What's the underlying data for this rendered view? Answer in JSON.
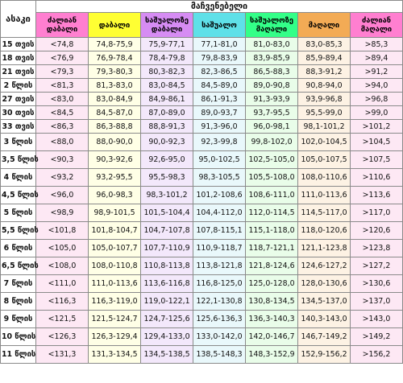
{
  "table": {
    "age_header": "ასაკი",
    "indicators_header": "მაჩვენებელი",
    "columns": [
      "ძალიან დაბალი",
      "დაბალი",
      "საშუალოზე დაბალი",
      "საშუალო",
      "საშუალოზე მაღალი",
      "მაღალი",
      "ძალიან მაღალი"
    ],
    "rows": [
      {
        "age": "15 თვის",
        "values": [
          "<74,8",
          "74,8-75,9",
          "75,9-77,1",
          "77,1-81,0",
          "81,0-83,0",
          "83,0-85,3",
          ">85,3"
        ]
      },
      {
        "age": "18 თვის",
        "values": [
          "<76,9",
          "76,9-78,4",
          "78,4-79,8",
          "79,8-83,9",
          "83,9-85,9",
          "85,9-89,4",
          ">89,4"
        ]
      },
      {
        "age": "21 თვის",
        "values": [
          "<79,3",
          "79,3-80,3",
          "80,3-82,3",
          "82,3-86,5",
          "86,5-88,3",
          "88,3-91,2",
          ">91,2"
        ]
      },
      {
        "age": "2 წლის",
        "values": [
          "<81,3",
          "81,3-83,0",
          "83,0-84,5",
          "84,5-89,0",
          "89,0-90,8",
          "90,8-94,0",
          ">94,0"
        ]
      },
      {
        "age": "27 თვის",
        "values": [
          "<83,0",
          "83,0-84,9",
          "84,9-86,1",
          "86,1-91,3",
          "91,3-93,9",
          "93,9-96,8",
          ">96,8"
        ]
      },
      {
        "age": "30 თვის",
        "values": [
          "<84,5",
          "84,5-87,0",
          "87,0-89,0",
          "89,0-93,7",
          "93,7-95,5",
          "95,5-99,0",
          ">99,0"
        ]
      },
      {
        "age": "33 თვის",
        "values": [
          "<86,3",
          "86,3-88,8",
          "88,8-91,3",
          "91,3-96,0",
          "96,0-98,1",
          "98,1-101,2",
          ">101,2"
        ]
      },
      {
        "age": "3 წლის",
        "values": [
          "<88,0",
          "88,0-90,0",
          "90,0-92,3",
          "92,3-99,8",
          "99,8-102,0",
          "102,0-104,5",
          ">104,5"
        ]
      },
      {
        "age": "3,5 წლის",
        "values": [
          "<90,3",
          "90,3-92,6",
          "92,6-95,0",
          "95,0-102,5",
          "102,5-105,0",
          "105,0-107,5",
          ">107,5"
        ]
      },
      {
        "age": "4 წლის",
        "values": [
          "<93,2",
          "93,2-95,5",
          "95,5-98,3",
          "98,3-105,5",
          "105,5-108,0",
          "108,0-110,6",
          ">110,6"
        ]
      },
      {
        "age": "4,5 წლის",
        "values": [
          "<96,0",
          "96,0-98,3",
          "98,3-101,2",
          "101,2-108,6",
          "108,6-111,0",
          "111,0-113,6",
          ">113,6"
        ]
      },
      {
        "age": "5 წლის",
        "values": [
          "<98,9",
          "98,9-101,5",
          "101,5-104,4",
          "104,4-112,0",
          "112,0-114,5",
          "114,5-117,0",
          ">117,0"
        ]
      },
      {
        "age": "5,5 წლის",
        "values": [
          "<101,8",
          "101,8-104,7",
          "104,7-107,8",
          "107,8-115,1",
          "115,1-118,0",
          "118,0-120,6",
          ">120,6"
        ]
      },
      {
        "age": "6 წლის",
        "values": [
          "<105,0",
          "105,0-107,7",
          "107,7-110,9",
          "110,9-118,7",
          "118,7-121,1",
          "121,1-123,8",
          ">123,8"
        ]
      },
      {
        "age": "6,5 წლის",
        "values": [
          "<108,0",
          "108,0-110,8",
          "110,8-113,8",
          "113,8-121,8",
          "121,8-124,6",
          "124,6-127,2",
          ">127,2"
        ]
      },
      {
        "age": "7 წლის",
        "values": [
          "<111,0",
          "111,0-113,6",
          "113,6-116,8",
          "116,8-125,0",
          "125,0-128,0",
          "128,0-130,6",
          ">130,6"
        ]
      },
      {
        "age": "8 წლის",
        "values": [
          "<116,3",
          "116,3-119,0",
          "119,0-122,1",
          "122,1-130,8",
          "130,8-134,5",
          "134,5-137,0",
          ">137,0"
        ]
      },
      {
        "age": "9 წლის",
        "values": [
          "<121,5",
          "121,5-124,7",
          "124,7-125,6",
          "125,6-136,3",
          "136,3-140,3",
          "140,3-143,0",
          ">143,0"
        ]
      },
      {
        "age": "10 წლის",
        "values": [
          "<126,3",
          "126,3-129,4",
          "129,4-133,0",
          "133,0-142,0",
          "142,0-146,7",
          "146,7-149,2",
          ">149,2"
        ]
      },
      {
        "age": "11 წლის",
        "values": [
          "<131,3",
          "131,3-134,5",
          "134,5-138,5",
          "138,5-148,3",
          "148,3-152,9",
          "152,9-156,2",
          ">156,2"
        ]
      }
    ]
  },
  "colors": {
    "very_low_header": "#ff7fd0",
    "low_header": "#ffff33",
    "below_avg_header": "#d68cf3",
    "avg_header": "#5fe0e8",
    "above_avg_header": "#33ff88",
    "high_header": "#f3ab55",
    "very_high_header": "#ff7fd0"
  }
}
